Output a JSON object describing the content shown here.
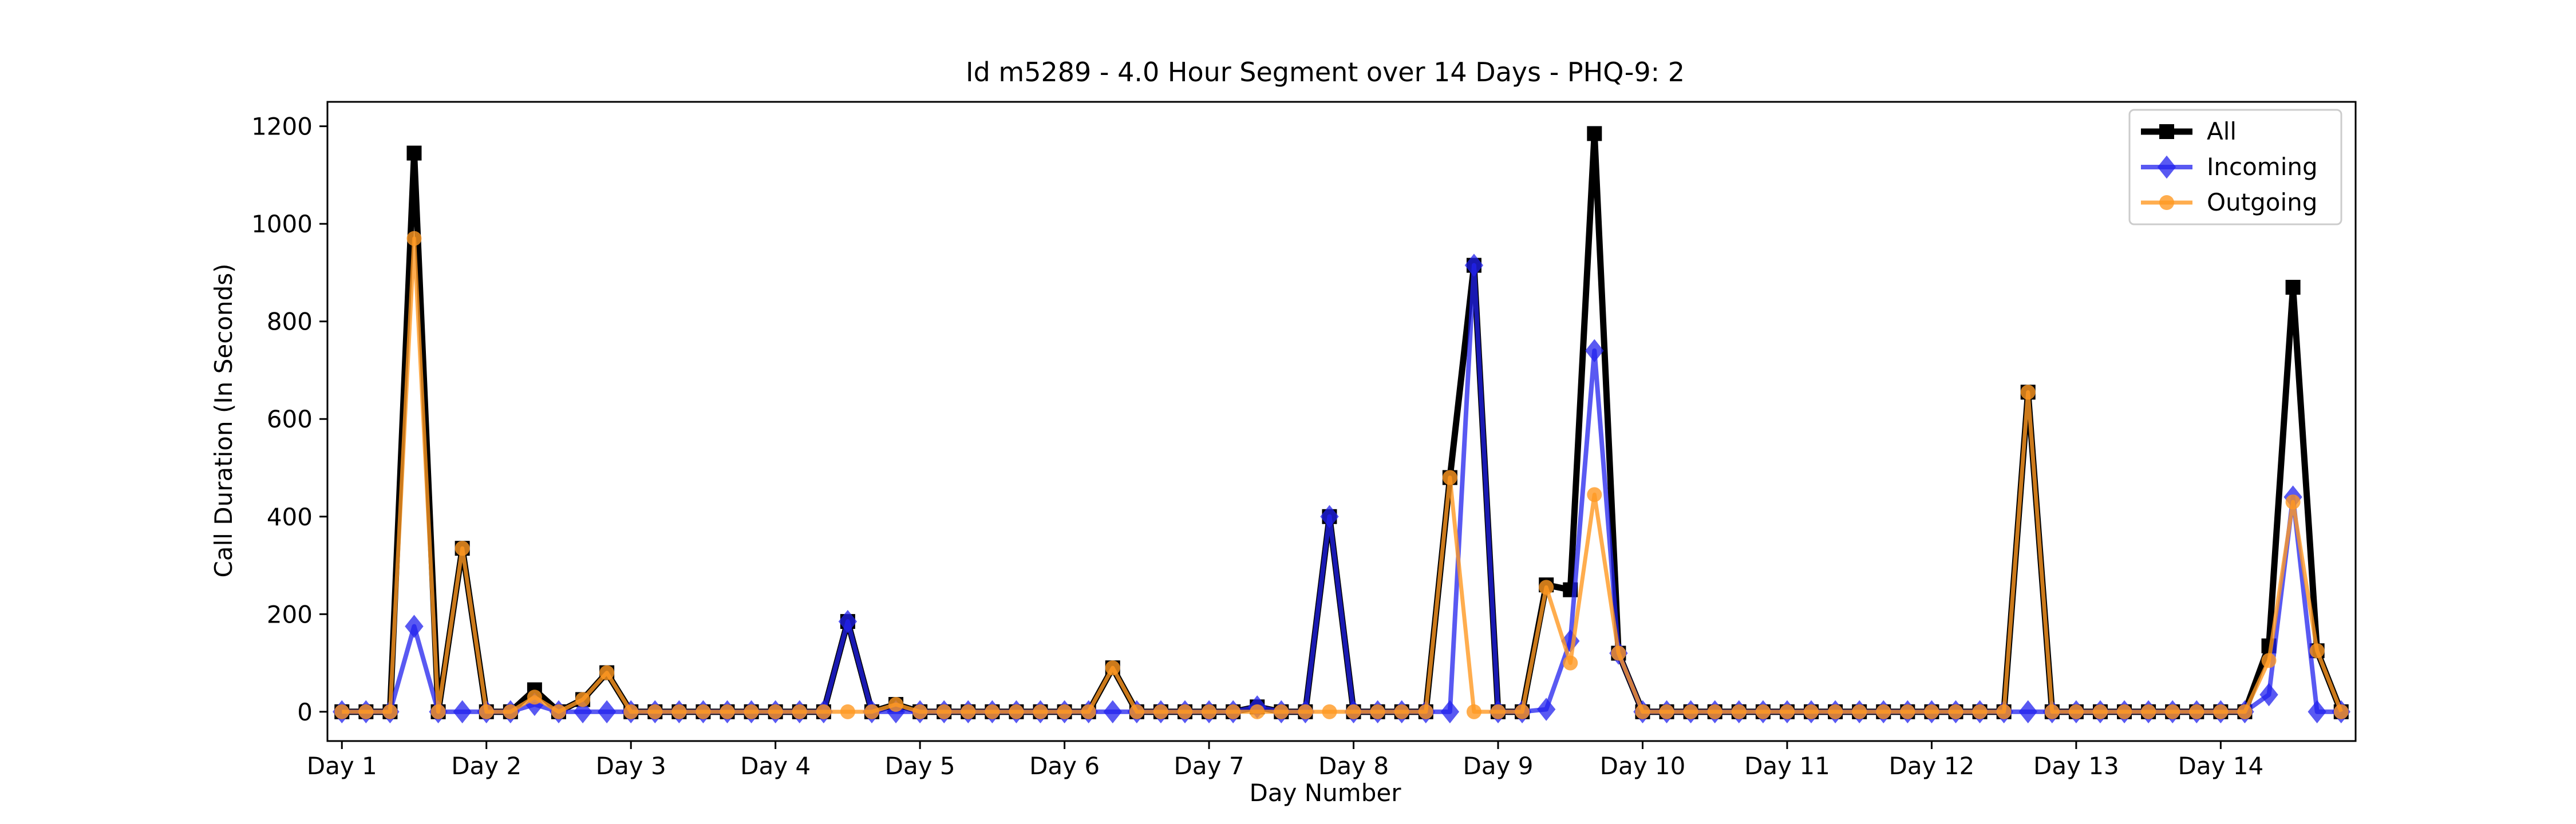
{
  "chart_data": {
    "type": "line",
    "title": "Id m5289 - 4.0 Hour Segment over 14 Days - PHQ-9: 2",
    "xlabel": "Day Number",
    "ylabel": "Call Duration (In Seconds)",
    "xlim": [
      -0.6,
      83.6
    ],
    "ylim": [
      -60,
      1250
    ],
    "yticks": [
      0,
      200,
      400,
      600,
      800,
      1000,
      1200
    ],
    "xticks": [
      {
        "x": 0,
        "label": "Day 1"
      },
      {
        "x": 6,
        "label": "Day 2"
      },
      {
        "x": 12,
        "label": "Day 3"
      },
      {
        "x": 18,
        "label": "Day 4"
      },
      {
        "x": 24,
        "label": "Day 5"
      },
      {
        "x": 30,
        "label": "Day 6"
      },
      {
        "x": 36,
        "label": "Day 7"
      },
      {
        "x": 42,
        "label": "Day 8"
      },
      {
        "x": 48,
        "label": "Day 9"
      },
      {
        "x": 54,
        "label": "Day 10"
      },
      {
        "x": 60,
        "label": "Day 11"
      },
      {
        "x": 66,
        "label": "Day 12"
      },
      {
        "x": 72,
        "label": "Day 13"
      },
      {
        "x": 78,
        "label": "Day 14"
      }
    ],
    "legend_position": "top-right",
    "grid": false,
    "series": [
      {
        "name": "All",
        "color": "#000000",
        "marker": "square",
        "values": [
          0,
          0,
          0,
          1145,
          0,
          335,
          0,
          0,
          45,
          0,
          25,
          80,
          0,
          0,
          0,
          0,
          0,
          0,
          0,
          0,
          0,
          185,
          0,
          15,
          0,
          0,
          0,
          0,
          0,
          0,
          0,
          0,
          90,
          0,
          0,
          0,
          0,
          0,
          10,
          0,
          0,
          400,
          0,
          0,
          0,
          0,
          480,
          915,
          0,
          0,
          260,
          250,
          1185,
          120,
          0,
          0,
          0,
          0,
          0,
          0,
          0,
          0,
          0,
          0,
          0,
          0,
          0,
          0,
          0,
          0,
          655,
          0,
          0,
          0,
          0,
          0,
          0,
          0,
          0,
          0,
          135,
          870,
          125,
          0
        ]
      },
      {
        "name": "Incoming",
        "color": "#2222ee",
        "marker": "diamond",
        "values": [
          0,
          0,
          0,
          175,
          0,
          0,
          0,
          0,
          15,
          0,
          0,
          0,
          0,
          0,
          0,
          0,
          0,
          0,
          0,
          0,
          0,
          185,
          0,
          0,
          0,
          0,
          0,
          0,
          0,
          0,
          0,
          0,
          0,
          0,
          0,
          0,
          0,
          0,
          10,
          0,
          0,
          400,
          0,
          0,
          0,
          0,
          0,
          915,
          0,
          0,
          5,
          145,
          740,
          120,
          0,
          0,
          0,
          0,
          0,
          0,
          0,
          0,
          0,
          0,
          0,
          0,
          0,
          0,
          0,
          0,
          0,
          0,
          0,
          0,
          0,
          0,
          0,
          0,
          0,
          0,
          35,
          440,
          0,
          0
        ]
      },
      {
        "name": "Outgoing",
        "color": "#ff9922",
        "marker": "circle",
        "values": [
          0,
          0,
          0,
          970,
          0,
          335,
          0,
          0,
          30,
          0,
          25,
          80,
          0,
          0,
          0,
          0,
          0,
          0,
          0,
          0,
          0,
          0,
          0,
          15,
          0,
          0,
          0,
          0,
          0,
          0,
          0,
          0,
          90,
          0,
          0,
          0,
          0,
          0,
          0,
          0,
          0,
          0,
          0,
          0,
          0,
          0,
          480,
          0,
          0,
          0,
          255,
          100,
          445,
          120,
          0,
          0,
          0,
          0,
          0,
          0,
          0,
          0,
          0,
          0,
          0,
          0,
          0,
          0,
          0,
          0,
          655,
          0,
          0,
          0,
          0,
          0,
          0,
          0,
          0,
          0,
          105,
          430,
          125,
          0
        ]
      }
    ]
  }
}
